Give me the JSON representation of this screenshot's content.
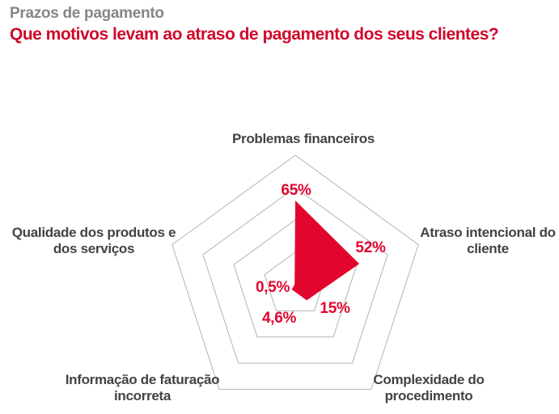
{
  "header": {
    "kicker": "Prazos de pagamento",
    "title": "Que motivos levam ao atraso de pagamento dos seus clientes?"
  },
  "colors": {
    "accent": "#e2062e",
    "title_red": "#cf0a2a",
    "kicker_gray": "#868686",
    "label_gray": "#434343",
    "grid_gray": "#b3b3b3",
    "background": "#ffffff"
  },
  "chart_data": {
    "type": "radar",
    "title": "Que motivos levam ao atraso de pagamento dos seus clientes?",
    "subtitle": "Prazos de pagamento",
    "max_value": 100,
    "rings_pct": [
      25,
      50,
      75,
      100
    ],
    "grid": "concentric-pentagons",
    "spokes": false,
    "fill_color": "#e2062e",
    "grid_color": "#b3b3b3",
    "axes": [
      {
        "label": "Problemas financeiros",
        "lines": [
          "Problemas financeiros"
        ],
        "value": 65,
        "display": "65%"
      },
      {
        "label": "Atraso intencional do cliente",
        "lines": [
          "Atraso intencional do",
          "cliente"
        ],
        "value": 52,
        "display": "52%"
      },
      {
        "label": "Complexidade do procedimento",
        "lines": [
          "Complexidade do",
          "procedimento"
        ],
        "value": 15,
        "display": "15%"
      },
      {
        "label": "Informação de faturação incorreta",
        "lines": [
          "Informação de faturação",
          "incorreta"
        ],
        "value": 4.6,
        "display": "4,6%"
      },
      {
        "label": "Qualidade dos produtos e dos serviços",
        "lines": [
          "Qualidade dos produtos e",
          "dos serviços"
        ],
        "value": 0.5,
        "display": "0,5%"
      }
    ]
  }
}
